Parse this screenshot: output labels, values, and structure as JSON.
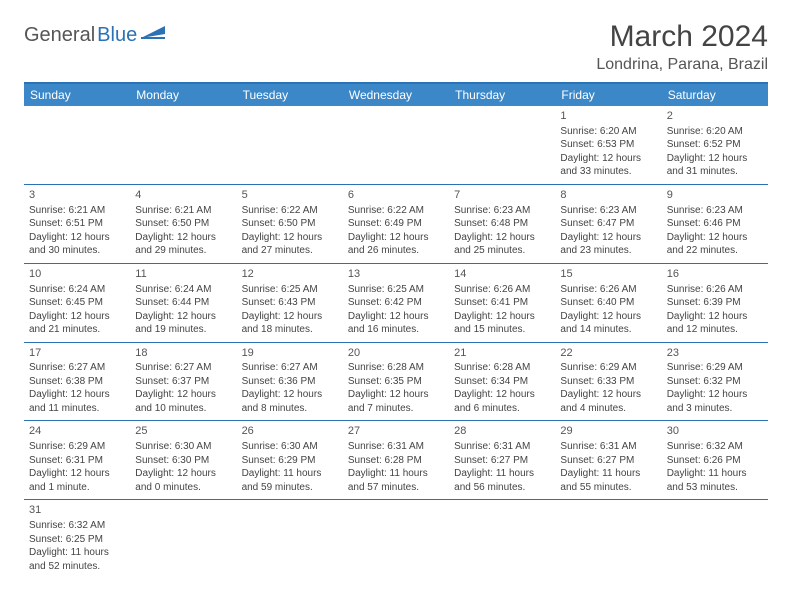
{
  "logo": {
    "part1": "General",
    "part2": "Blue"
  },
  "title": "March 2024",
  "location": "Londrina, Parana, Brazil",
  "colors": {
    "header_bg": "#3b87c8",
    "header_border": "#2a72b5",
    "row_border": "#2a72b5",
    "text": "#444444"
  },
  "day_names": [
    "Sunday",
    "Monday",
    "Tuesday",
    "Wednesday",
    "Thursday",
    "Friday",
    "Saturday"
  ],
  "weeks": [
    [
      null,
      null,
      null,
      null,
      null,
      {
        "d": "1",
        "sr": "6:20 AM",
        "ss": "6:53 PM",
        "dl": "12 hours and 33 minutes."
      },
      {
        "d": "2",
        "sr": "6:20 AM",
        "ss": "6:52 PM",
        "dl": "12 hours and 31 minutes."
      }
    ],
    [
      {
        "d": "3",
        "sr": "6:21 AM",
        "ss": "6:51 PM",
        "dl": "12 hours and 30 minutes."
      },
      {
        "d": "4",
        "sr": "6:21 AM",
        "ss": "6:50 PM",
        "dl": "12 hours and 29 minutes."
      },
      {
        "d": "5",
        "sr": "6:22 AM",
        "ss": "6:50 PM",
        "dl": "12 hours and 27 minutes."
      },
      {
        "d": "6",
        "sr": "6:22 AM",
        "ss": "6:49 PM",
        "dl": "12 hours and 26 minutes."
      },
      {
        "d": "7",
        "sr": "6:23 AM",
        "ss": "6:48 PM",
        "dl": "12 hours and 25 minutes."
      },
      {
        "d": "8",
        "sr": "6:23 AM",
        "ss": "6:47 PM",
        "dl": "12 hours and 23 minutes."
      },
      {
        "d": "9",
        "sr": "6:23 AM",
        "ss": "6:46 PM",
        "dl": "12 hours and 22 minutes."
      }
    ],
    [
      {
        "d": "10",
        "sr": "6:24 AM",
        "ss": "6:45 PM",
        "dl": "12 hours and 21 minutes."
      },
      {
        "d": "11",
        "sr": "6:24 AM",
        "ss": "6:44 PM",
        "dl": "12 hours and 19 minutes."
      },
      {
        "d": "12",
        "sr": "6:25 AM",
        "ss": "6:43 PM",
        "dl": "12 hours and 18 minutes."
      },
      {
        "d": "13",
        "sr": "6:25 AM",
        "ss": "6:42 PM",
        "dl": "12 hours and 16 minutes."
      },
      {
        "d": "14",
        "sr": "6:26 AM",
        "ss": "6:41 PM",
        "dl": "12 hours and 15 minutes."
      },
      {
        "d": "15",
        "sr": "6:26 AM",
        "ss": "6:40 PM",
        "dl": "12 hours and 14 minutes."
      },
      {
        "d": "16",
        "sr": "6:26 AM",
        "ss": "6:39 PM",
        "dl": "12 hours and 12 minutes."
      }
    ],
    [
      {
        "d": "17",
        "sr": "6:27 AM",
        "ss": "6:38 PM",
        "dl": "12 hours and 11 minutes."
      },
      {
        "d": "18",
        "sr": "6:27 AM",
        "ss": "6:37 PM",
        "dl": "12 hours and 10 minutes."
      },
      {
        "d": "19",
        "sr": "6:27 AM",
        "ss": "6:36 PM",
        "dl": "12 hours and 8 minutes."
      },
      {
        "d": "20",
        "sr": "6:28 AM",
        "ss": "6:35 PM",
        "dl": "12 hours and 7 minutes."
      },
      {
        "d": "21",
        "sr": "6:28 AM",
        "ss": "6:34 PM",
        "dl": "12 hours and 6 minutes."
      },
      {
        "d": "22",
        "sr": "6:29 AM",
        "ss": "6:33 PM",
        "dl": "12 hours and 4 minutes."
      },
      {
        "d": "23",
        "sr": "6:29 AM",
        "ss": "6:32 PM",
        "dl": "12 hours and 3 minutes."
      }
    ],
    [
      {
        "d": "24",
        "sr": "6:29 AM",
        "ss": "6:31 PM",
        "dl": "12 hours and 1 minute."
      },
      {
        "d": "25",
        "sr": "6:30 AM",
        "ss": "6:30 PM",
        "dl": "12 hours and 0 minutes."
      },
      {
        "d": "26",
        "sr": "6:30 AM",
        "ss": "6:29 PM",
        "dl": "11 hours and 59 minutes."
      },
      {
        "d": "27",
        "sr": "6:31 AM",
        "ss": "6:28 PM",
        "dl": "11 hours and 57 minutes."
      },
      {
        "d": "28",
        "sr": "6:31 AM",
        "ss": "6:27 PM",
        "dl": "11 hours and 56 minutes."
      },
      {
        "d": "29",
        "sr": "6:31 AM",
        "ss": "6:27 PM",
        "dl": "11 hours and 55 minutes."
      },
      {
        "d": "30",
        "sr": "6:32 AM",
        "ss": "6:26 PM",
        "dl": "11 hours and 53 minutes."
      }
    ],
    [
      {
        "d": "31",
        "sr": "6:32 AM",
        "ss": "6:25 PM",
        "dl": "11 hours and 52 minutes."
      },
      null,
      null,
      null,
      null,
      null,
      null
    ]
  ],
  "labels": {
    "sunrise": "Sunrise:",
    "sunset": "Sunset:",
    "daylight": "Daylight:"
  }
}
